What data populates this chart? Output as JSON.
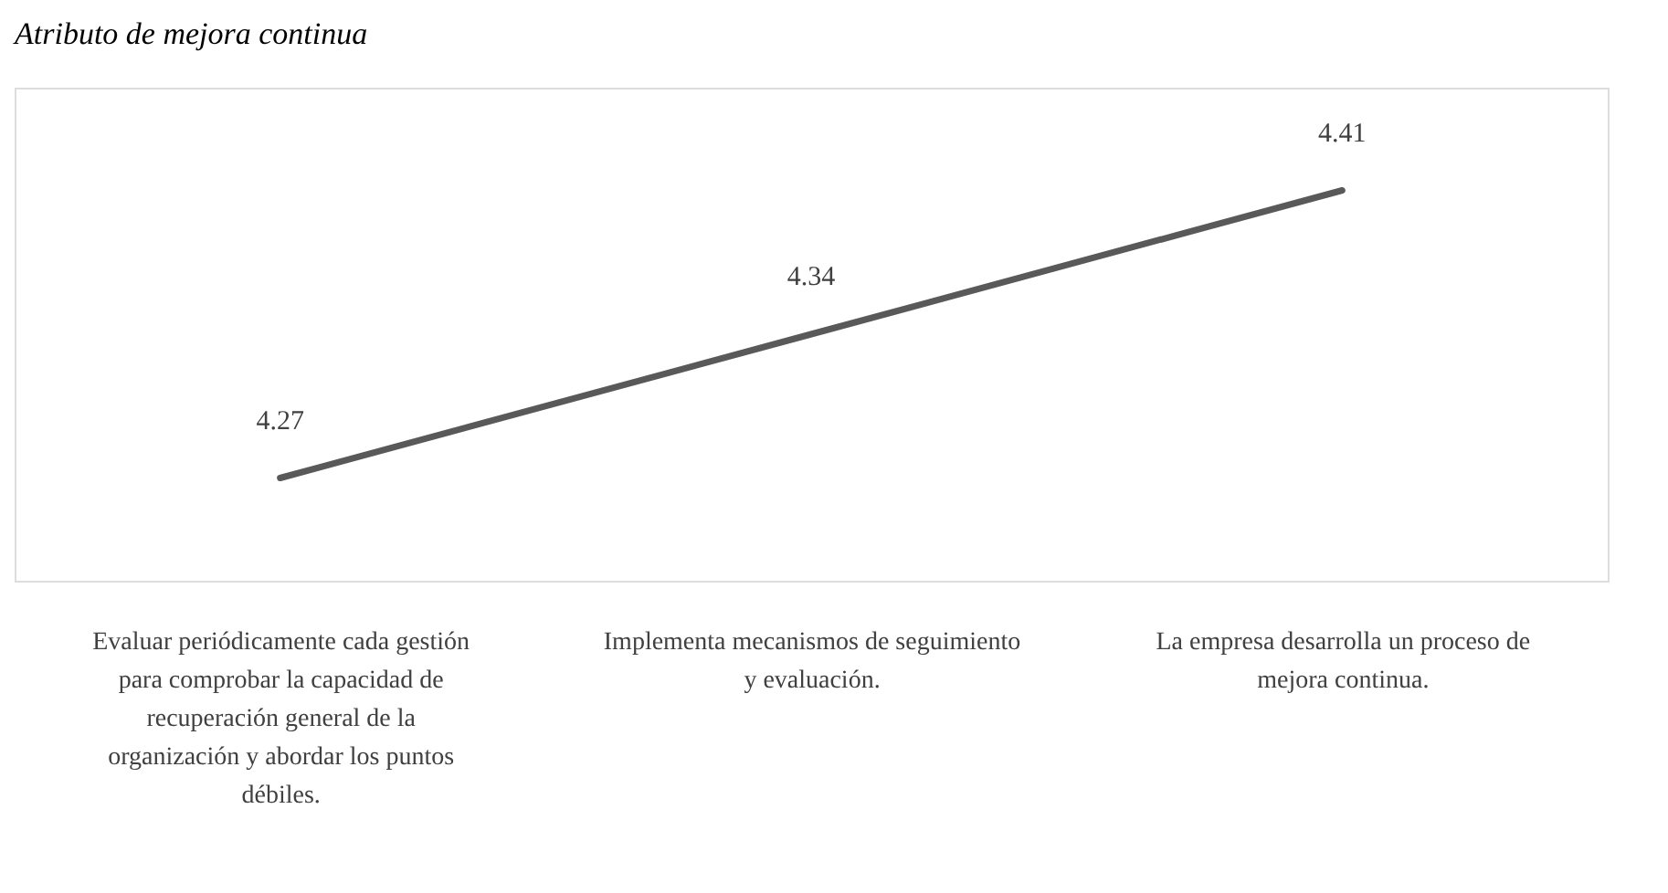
{
  "chart_data": {
    "type": "line",
    "title": "Atributo de mejora continua",
    "categories": [
      "Evaluar periódicamente cada gestión para comprobar la capacidad de recuperación general de la organización y abordar los puntos débiles.",
      "Implementa mecanismos de seguimiento y evaluación.",
      "La empresa desarrolla un proceso de mejora continua."
    ],
    "series": [
      {
        "color": "#595959",
        "values": [
          4.27,
          4.34,
          4.41
        ]
      }
    ],
    "ylim": [
      4.22,
      4.46
    ],
    "tick_labels": "x",
    "data_labels": true,
    "grid": false,
    "marker": "none",
    "line_style": "solid"
  }
}
